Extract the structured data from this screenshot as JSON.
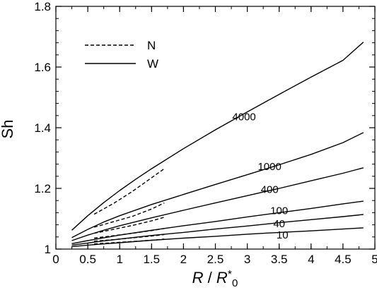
{
  "chart_data": {
    "type": "line",
    "title": "",
    "xlabel_parts": {
      "r": "R",
      "slash": " / ",
      "rstar": "R",
      "star": "*",
      "sub": "0"
    },
    "ylabel": "Sh",
    "xlim": [
      0,
      5
    ],
    "ylim": [
      1,
      1.8
    ],
    "x_ticks": [
      0,
      0.5,
      1,
      1.5,
      2,
      2.5,
      3,
      3.5,
      4,
      4.5,
      5
    ],
    "x_tick_labels": [
      "0",
      "0.5",
      "1",
      "1.5",
      "2",
      "2.5",
      "3",
      "3.5",
      "4",
      "4.5",
      "5"
    ],
    "y_ticks": [
      1,
      1.2,
      1.4,
      1.6,
      1.8
    ],
    "y_tick_labels": [
      "1",
      "1.2",
      "1.4",
      "1.6",
      "1.8"
    ],
    "minor_x_step": 0.25,
    "minor_y_step": 0.04,
    "grid": false,
    "legend": {
      "position": "top-left",
      "entries": [
        {
          "label": "N",
          "style": "dashed"
        },
        {
          "label": "W",
          "style": "solid"
        }
      ]
    },
    "series": [
      {
        "group": "W",
        "style": "solid",
        "label": "4000",
        "label_at": [
          2.95,
          1.425
        ],
        "points": [
          [
            0.25,
            1.062
          ],
          [
            0.5,
            1.11
          ],
          [
            0.75,
            1.153
          ],
          [
            1.0,
            1.193
          ],
          [
            1.25,
            1.23
          ],
          [
            1.5,
            1.265
          ],
          [
            2.0,
            1.331
          ],
          [
            2.5,
            1.393
          ],
          [
            3.0,
            1.452
          ],
          [
            3.5,
            1.51
          ],
          [
            4.0,
            1.567
          ],
          [
            4.5,
            1.622
          ],
          [
            4.82,
            1.682
          ]
        ]
      },
      {
        "group": "W",
        "style": "solid",
        "label": "1000",
        "label_at": [
          3.35,
          1.26
        ],
        "points": [
          [
            0.25,
            1.038
          ],
          [
            0.5,
            1.065
          ],
          [
            0.75,
            1.089
          ],
          [
            1.0,
            1.11
          ],
          [
            1.5,
            1.147
          ],
          [
            2.0,
            1.18
          ],
          [
            2.5,
            1.213
          ],
          [
            3.0,
            1.245
          ],
          [
            3.5,
            1.278
          ],
          [
            4.0,
            1.312
          ],
          [
            4.5,
            1.351
          ],
          [
            4.82,
            1.384
          ]
        ]
      },
      {
        "group": "W",
        "style": "solid",
        "label": "400",
        "label_at": [
          3.35,
          1.185
        ],
        "points": [
          [
            0.25,
            1.028
          ],
          [
            0.5,
            1.046
          ],
          [
            0.75,
            1.062
          ],
          [
            1.0,
            1.077
          ],
          [
            1.5,
            1.103
          ],
          [
            2.0,
            1.128
          ],
          [
            2.5,
            1.152
          ],
          [
            3.0,
            1.176
          ],
          [
            3.5,
            1.2
          ],
          [
            4.0,
            1.225
          ],
          [
            4.5,
            1.25
          ],
          [
            4.82,
            1.268
          ]
        ]
      },
      {
        "group": "W",
        "style": "solid",
        "label": "100",
        "label_at": [
          3.5,
          1.115
        ],
        "points": [
          [
            0.25,
            1.018
          ],
          [
            0.5,
            1.028
          ],
          [
            0.75,
            1.037
          ],
          [
            1.0,
            1.046
          ],
          [
            1.5,
            1.062
          ],
          [
            2.0,
            1.077
          ],
          [
            2.5,
            1.091
          ],
          [
            3.0,
            1.106
          ],
          [
            3.5,
            1.12
          ],
          [
            4.0,
            1.134
          ],
          [
            4.5,
            1.149
          ],
          [
            4.82,
            1.158
          ]
        ]
      },
      {
        "group": "W",
        "style": "solid",
        "label": "40",
        "label_at": [
          3.5,
          1.072
        ],
        "points": [
          [
            0.25,
            1.013
          ],
          [
            0.5,
            1.02
          ],
          [
            0.75,
            1.027
          ],
          [
            1.0,
            1.033
          ],
          [
            1.5,
            1.045
          ],
          [
            2.0,
            1.055
          ],
          [
            2.5,
            1.066
          ],
          [
            3.0,
            1.076
          ],
          [
            3.5,
            1.087
          ],
          [
            4.0,
            1.097
          ],
          [
            4.5,
            1.107
          ],
          [
            4.82,
            1.114
          ]
        ]
      },
      {
        "group": "W",
        "style": "solid",
        "label": "10",
        "label_at": [
          3.55,
          1.035
        ],
        "points": [
          [
            0.25,
            1.008
          ],
          [
            0.5,
            1.013
          ],
          [
            0.75,
            1.017
          ],
          [
            1.0,
            1.021
          ],
          [
            1.5,
            1.029
          ],
          [
            2.0,
            1.036
          ],
          [
            2.5,
            1.042
          ],
          [
            3.0,
            1.049
          ],
          [
            3.5,
            1.055
          ],
          [
            4.0,
            1.06
          ],
          [
            4.5,
            1.066
          ],
          [
            4.82,
            1.07
          ]
        ]
      },
      {
        "group": "N",
        "style": "dashed",
        "label": "",
        "points": [
          [
            0.6,
            1.115
          ],
          [
            0.9,
            1.15
          ],
          [
            1.2,
            1.19
          ],
          [
            1.5,
            1.235
          ],
          [
            1.7,
            1.265
          ]
        ]
      },
      {
        "group": "N",
        "style": "dashed",
        "label": "",
        "points": [
          [
            0.6,
            1.072
          ],
          [
            0.9,
            1.09
          ],
          [
            1.2,
            1.108
          ],
          [
            1.5,
            1.132
          ],
          [
            1.7,
            1.152
          ]
        ]
      },
      {
        "group": "N",
        "style": "dashed",
        "label": "",
        "points": [
          [
            0.6,
            1.052
          ],
          [
            0.9,
            1.065
          ],
          [
            1.2,
            1.078
          ],
          [
            1.5,
            1.093
          ],
          [
            1.7,
            1.105
          ]
        ]
      },
      {
        "group": "N",
        "style": "dashed",
        "label": "",
        "points": [
          [
            0.6,
            1.036
          ],
          [
            0.9,
            1.044
          ],
          [
            1.2,
            1.052
          ],
          [
            1.5,
            1.061
          ],
          [
            1.7,
            1.068
          ]
        ]
      },
      {
        "group": "N",
        "style": "dashed",
        "label": "",
        "points": [
          [
            0.6,
            1.026
          ],
          [
            0.9,
            1.031
          ],
          [
            1.2,
            1.037
          ],
          [
            1.5,
            1.043
          ],
          [
            1.7,
            1.048
          ]
        ]
      },
      {
        "group": "N",
        "style": "dashed",
        "label": "",
        "points": [
          [
            0.6,
            1.017
          ],
          [
            0.9,
            1.021
          ],
          [
            1.2,
            1.025
          ],
          [
            1.5,
            1.029
          ],
          [
            1.7,
            1.033
          ]
        ]
      }
    ]
  }
}
